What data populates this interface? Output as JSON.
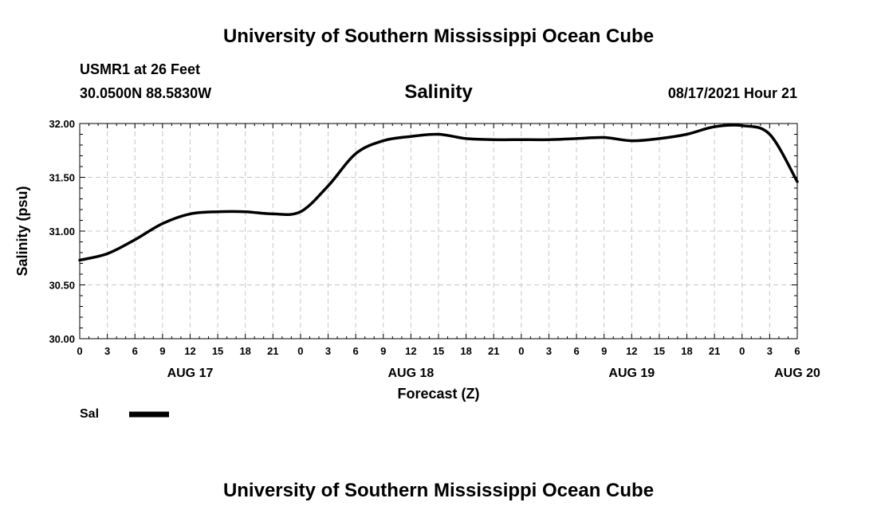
{
  "header": {
    "title_top": "University of Southern Mississippi Ocean Cube",
    "station": "USMR1 at 26 Feet",
    "coords": "30.0500N  88.5830W",
    "datetime": "08/17/2021 Hour 21",
    "title_bottom": "University of Southern Mississippi Ocean Cube"
  },
  "legend": {
    "label": "Sal"
  },
  "colors": {
    "line": "#000000",
    "grid": "#c8c8c8",
    "background": "#ffffff"
  },
  "chart_data": {
    "type": "line",
    "title": "Salinity",
    "xlabel": "Forecast (Z)",
    "ylabel": "Salinity (psu)",
    "ylim": [
      30.0,
      32.0
    ],
    "y_ticks": [
      "30.00",
      "30.50",
      "31.00",
      "31.50",
      "32.00"
    ],
    "x_tick_labels": [
      "0",
      "3",
      "6",
      "9",
      "12",
      "15",
      "18",
      "21",
      "0",
      "3",
      "6",
      "9",
      "12",
      "15",
      "18",
      "21",
      "0",
      "3",
      "6",
      "9",
      "12",
      "15",
      "18",
      "21",
      "0",
      "3",
      "6"
    ],
    "date_labels": [
      {
        "label": "AUG 17",
        "hour": 12
      },
      {
        "label": "AUG 18",
        "hour": 36
      },
      {
        "label": "AUG 19",
        "hour": 60
      },
      {
        "label": "AUG 20",
        "hour": 78
      }
    ],
    "x_range_hours": [
      0,
      78
    ],
    "grid": true,
    "series": [
      {
        "name": "Sal",
        "hours": [
          0,
          3,
          6,
          9,
          12,
          15,
          18,
          21,
          24,
          27,
          30,
          33,
          36,
          39,
          42,
          45,
          48,
          51,
          54,
          57,
          60,
          63,
          66,
          69,
          72,
          75,
          78
        ],
        "values": [
          30.73,
          30.79,
          30.92,
          31.07,
          31.16,
          31.18,
          31.18,
          31.16,
          31.18,
          31.42,
          31.72,
          31.84,
          31.88,
          31.9,
          31.86,
          31.85,
          31.85,
          31.85,
          31.86,
          31.87,
          31.84,
          31.86,
          31.9,
          31.97,
          31.98,
          31.9,
          31.46
        ]
      }
    ]
  }
}
